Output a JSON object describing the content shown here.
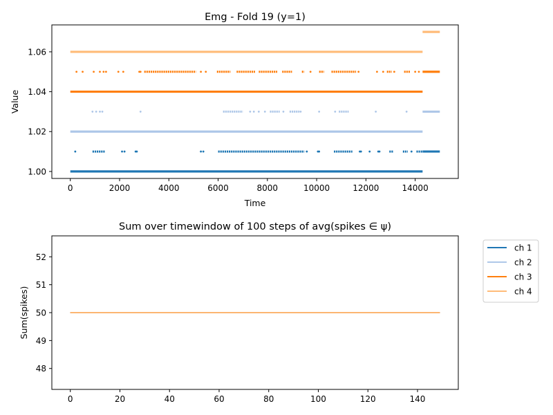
{
  "chart_data": [
    {
      "type": "scatter",
      "title": "Emg - Fold 19 (y=1)",
      "xlabel": "Time",
      "ylabel": "Value",
      "xlim": [
        -750,
        15750
      ],
      "ylim": [
        0.9965,
        1.0735
      ],
      "xticks": [
        0,
        2000,
        4000,
        6000,
        8000,
        10000,
        12000,
        14000
      ],
      "yticks": [
        1.0,
        1.02,
        1.04,
        1.06
      ],
      "ytick_labels": [
        "1.00",
        "1.02",
        "1.04",
        "1.06"
      ],
      "grid": false,
      "series": [
        {
          "color": "#1f77b4",
          "bands": [
            {
              "y": 1.0,
              "x0": 0,
              "x1": 14300
            },
            {
              "y": 1.01,
              "x0": 14300,
              "x1": 15000
            }
          ],
          "dense_runs": [
            [
              900,
              1400
            ],
            [
              6000,
              9500
            ],
            [
              10700,
              11450
            ],
            [
              12950,
              13100
            ],
            [
              13500,
              13700
            ],
            [
              14050,
              14300
            ]
          ],
          "sparse_points": [
            [
              200,
              1.01
            ],
            [
              2100,
              1.01
            ],
            [
              2200,
              1.01
            ],
            [
              2650,
              1.01
            ],
            [
              2700,
              1.01
            ],
            [
              5300,
              1.01
            ],
            [
              5400,
              1.01
            ],
            [
              9600,
              1.01
            ],
            [
              10050,
              1.01
            ],
            [
              10100,
              1.01
            ],
            [
              11750,
              1.01
            ],
            [
              11800,
              1.01
            ],
            [
              12150,
              1.01
            ],
            [
              12500,
              1.01
            ],
            [
              12550,
              1.01
            ],
            [
              13850,
              1.01
            ]
          ]
        },
        {
          "color": "#aec7e8",
          "bands": [
            {
              "y": 1.02,
              "x0": 0,
              "x1": 14300
            },
            {
              "y": 1.03,
              "x0": 14300,
              "x1": 15000
            }
          ],
          "dense_runs": [
            [
              6200,
              7000
            ],
            [
              8100,
              8500
            ],
            [
              8900,
              9300
            ],
            [
              10900,
              11300
            ]
          ],
          "sparse_points": [
            [
              900,
              1.03
            ],
            [
              1050,
              1.03
            ],
            [
              1200,
              1.03
            ],
            [
              1300,
              1.03
            ],
            [
              2850,
              1.03
            ],
            [
              7300,
              1.03
            ],
            [
              7450,
              1.03
            ],
            [
              7650,
              1.03
            ],
            [
              7900,
              1.03
            ],
            [
              8650,
              1.03
            ],
            [
              9350,
              1.03
            ],
            [
              10100,
              1.03
            ],
            [
              10750,
              1.03
            ],
            [
              12400,
              1.03
            ],
            [
              13650,
              1.03
            ]
          ]
        },
        {
          "color": "#ff7f0e",
          "bands": [
            {
              "y": 1.04,
              "x0": 0,
              "x1": 14300
            },
            {
              "y": 1.05,
              "x0": 14300,
              "x1": 15000
            }
          ],
          "dense_runs": [
            [
              3000,
              5100
            ],
            [
              5950,
              6500
            ],
            [
              6750,
              7500
            ],
            [
              7650,
              8400
            ],
            [
              8600,
              9000
            ],
            [
              9400,
              9500
            ],
            [
              10100,
              10300
            ],
            [
              10600,
              11600
            ],
            [
              12850,
              13050
            ],
            [
              13550,
              13800
            ]
          ],
          "sparse_points": [
            [
              250,
              1.05
            ],
            [
              500,
              1.05
            ],
            [
              950,
              1.05
            ],
            [
              1200,
              1.05
            ],
            [
              1350,
              1.05
            ],
            [
              1450,
              1.05
            ],
            [
              1950,
              1.05
            ],
            [
              2150,
              1.05
            ],
            [
              2800,
              1.05
            ],
            [
              2850,
              1.05
            ],
            [
              5300,
              1.05
            ],
            [
              5500,
              1.05
            ],
            [
              9750,
              1.05
            ],
            [
              11700,
              1.05
            ],
            [
              12450,
              1.05
            ],
            [
              12700,
              1.05
            ],
            [
              13150,
              1.05
            ],
            [
              14000,
              1.05
            ],
            [
              14150,
              1.05
            ]
          ]
        },
        {
          "color": "#ffbb78",
          "bands": [
            {
              "y": 1.06,
              "x0": 0,
              "x1": 14300
            },
            {
              "y": 1.07,
              "x0": 14300,
              "x1": 15000
            }
          ],
          "dense_runs": [],
          "sparse_points": []
        }
      ]
    },
    {
      "type": "line",
      "title": "Sum over timewindow of 100 steps of avg(spikes ∈ ψ)",
      "xlabel": "",
      "ylabel": "Sum(spikes)",
      "xlim": [
        -7.45,
        156.45
      ],
      "ylim": [
        47.25,
        52.75
      ],
      "xticks": [
        0,
        20,
        40,
        60,
        80,
        100,
        120,
        140
      ],
      "yticks": [
        48,
        49,
        50,
        51,
        52
      ],
      "grid": false,
      "legend": "outside-upper-right",
      "x": [
        0,
        149
      ],
      "series": [
        {
          "name": "ch 1",
          "color": "#1f77b4",
          "values": [
            50,
            50
          ]
        },
        {
          "name": "ch 2",
          "color": "#aec7e8",
          "values": [
            50,
            50
          ]
        },
        {
          "name": "ch 3",
          "color": "#ff7f0e",
          "values": [
            50,
            50
          ]
        },
        {
          "name": "ch 4",
          "color": "#ffbb78",
          "values": [
            50,
            50
          ]
        }
      ]
    }
  ]
}
